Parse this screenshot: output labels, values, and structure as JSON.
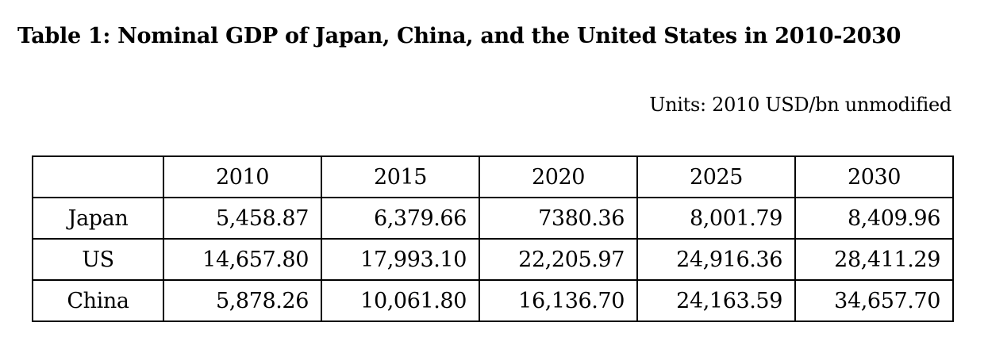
{
  "title": "Table 1: Nominal GDP of Japan, China, and the United States in 2010-2030",
  "units": "Units: 2010 USD/bn unmodified",
  "table": {
    "corner": "",
    "columns": [
      "2010",
      "2015",
      "2020",
      "2025",
      "2030"
    ],
    "rows": [
      {
        "label": "Japan",
        "values": [
          "5,458.87",
          "6,379.66",
          "7380.36",
          "8,001.79",
          "8,409.96"
        ]
      },
      {
        "label": "US",
        "values": [
          "14,657.80",
          "17,993.10",
          "22,205.97",
          "24,916.36",
          "28,411.29"
        ]
      },
      {
        "label": "China",
        "values": [
          "5,878.26",
          "10,061.80",
          "16,136.70",
          "24,163.59",
          "34,657.70"
        ]
      }
    ]
  }
}
